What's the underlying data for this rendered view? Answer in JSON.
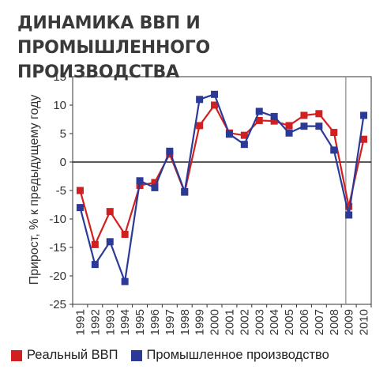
{
  "chart_data": {
    "type": "line",
    "title": "ДИНАМИКА ВВП И ПРОМЫШЛЕННОГО ПРОИЗВОДСТВА",
    "ylabel": "Прирост, % к предыдущему году",
    "xlabel": "",
    "ylim": [
      -25,
      15
    ],
    "yticks": [
      15,
      10,
      5,
      0,
      -5,
      -10,
      -15,
      -20,
      -25
    ],
    "x": [
      "1991",
      "1992",
      "1993",
      "1994",
      "1995",
      "1996",
      "1997",
      "1998",
      "1999",
      "2000",
      "2001",
      "2002",
      "2003",
      "2004",
      "2005",
      "2006",
      "2007",
      "2008",
      "2009",
      "2010"
    ],
    "grid": false,
    "legend_position": "bottom",
    "series": [
      {
        "name": "Реальный ВВП",
        "color": "#d0201f",
        "values": [
          -5,
          -14.5,
          -8.7,
          -12.7,
          -4.1,
          -3.6,
          1.4,
          -5.3,
          6.4,
          10.0,
          5.1,
          4.7,
          7.3,
          7.2,
          6.4,
          8.2,
          8.5,
          5.2,
          -7.8,
          4.0
        ]
      },
      {
        "name": "Промышленное производство",
        "color": "#2b3a97",
        "values": [
          -8,
          -18,
          -14,
          -21,
          -3.3,
          -4.5,
          1.9,
          -5.2,
          11.0,
          11.9,
          4.9,
          3.1,
          8.9,
          8.0,
          5.1,
          6.3,
          6.3,
          2.1,
          -9.3,
          8.2
        ]
      }
    ],
    "reference_line_year": "2009"
  }
}
